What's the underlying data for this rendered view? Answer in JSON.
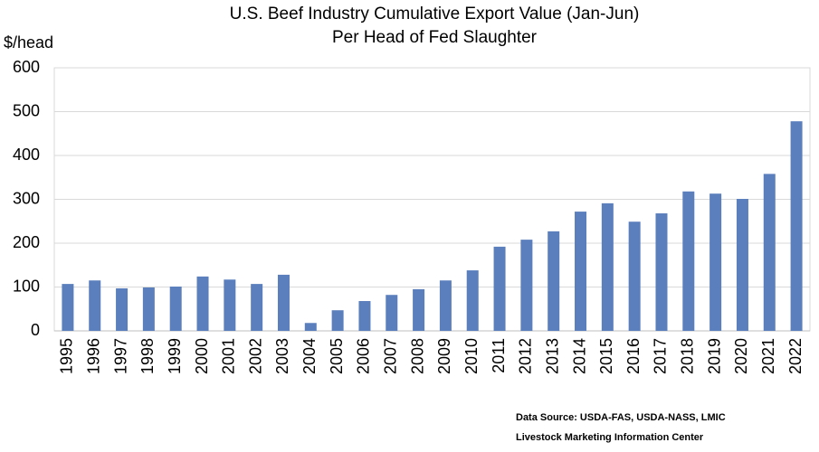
{
  "chart_data": {
    "type": "bar",
    "title": "U.S. Beef Industry Cumulative Export Value (Jan-Jun)",
    "subtitle": "Per Head of Fed Slaughter",
    "y_label": "$/head",
    "annotations": [
      "Data Source:  USDA-FAS, USDA-NASS, LMIC",
      "Livestock Marketing Information Center"
    ],
    "categories": [
      "1995",
      "1996",
      "1997",
      "1998",
      "1999",
      "2000",
      "2001",
      "2002",
      "2003",
      "2004",
      "2005",
      "2006",
      "2007",
      "2008",
      "2009",
      "2010",
      "2011",
      "2012",
      "2013",
      "2014",
      "2015",
      "2016",
      "2017",
      "2018",
      "2019",
      "2020",
      "2021",
      "2022"
    ],
    "values": [
      107,
      115,
      97,
      99,
      101,
      124,
      117,
      107,
      128,
      18,
      47,
      68,
      82,
      95,
      115,
      138,
      192,
      208,
      227,
      272,
      291,
      249,
      268,
      318,
      313,
      301,
      358,
      478
    ],
    "color": "#5b7fbd",
    "ylim": [
      0,
      600
    ],
    "yticks": [
      0,
      100,
      200,
      300,
      400,
      500,
      600
    ],
    "grid": true
  }
}
